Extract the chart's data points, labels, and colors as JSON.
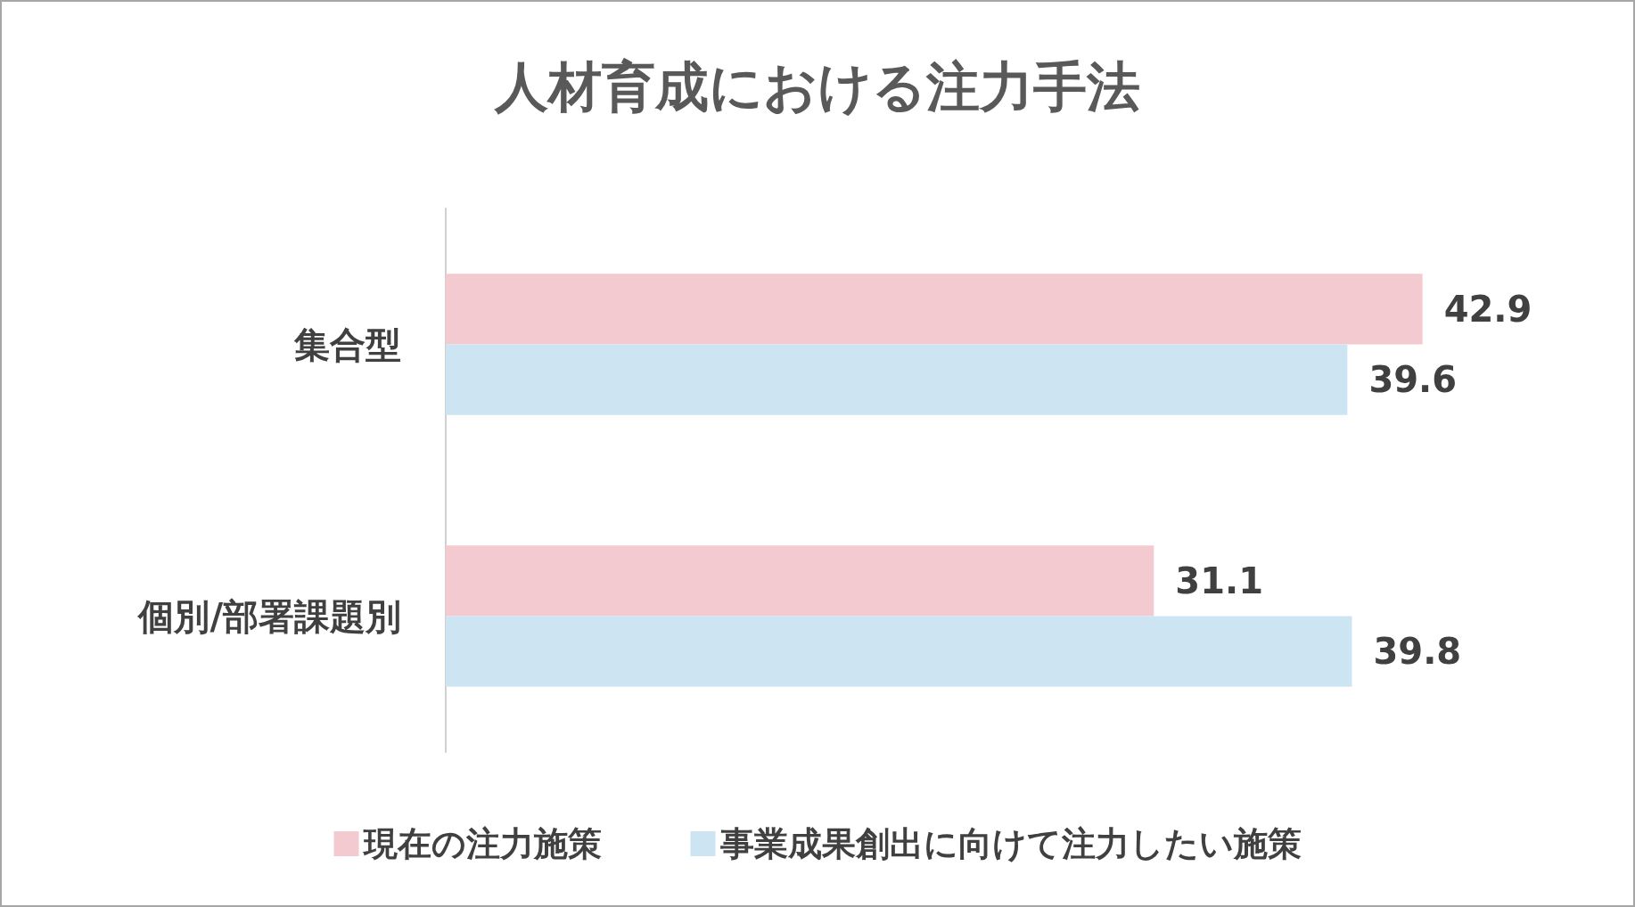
{
  "chart_data": {
    "type": "bar",
    "orientation": "horizontal",
    "title": "人材育成における注力手法",
    "categories": [
      "集合型",
      "個別/部署課題別"
    ],
    "series": [
      {
        "name": "現在の注力施策",
        "color": "#f4cad1",
        "values": [
          42.9,
          31.1
        ]
      },
      {
        "name": "事業成果創出に向けて注力したい施策",
        "color": "#cde5f2",
        "values": [
          39.6,
          39.8
        ]
      }
    ],
    "data_labels": true,
    "legend": "bottom",
    "grid": false
  }
}
